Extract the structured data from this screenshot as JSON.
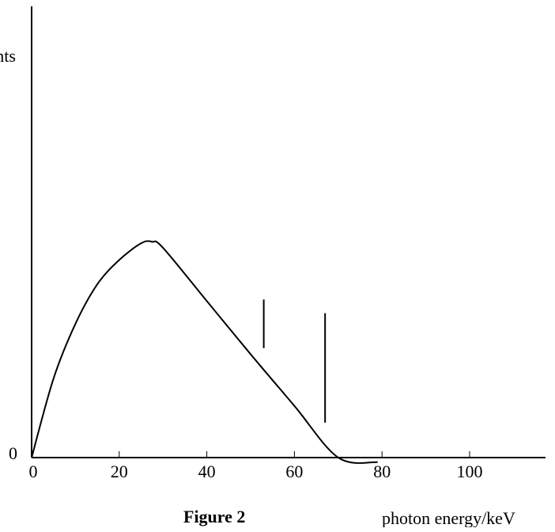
{
  "chart_data": {
    "type": "line",
    "title": "",
    "caption": "Figure 2",
    "xlabel": "photon energy/keV",
    "ylabel": "counts",
    "xlim": [
      0,
      120
    ],
    "ylim": [
      0,
      100
    ],
    "x_ticks": [
      0,
      20,
      40,
      60,
      80,
      100
    ],
    "y_ticks": [
      0
    ],
    "grid": false,
    "legend": "none",
    "series": [
      {
        "x": [
          0,
          5,
          10,
          15,
          20,
          25,
          27.5,
          30,
          40,
          50,
          60,
          70,
          79
        ],
        "y": [
          0,
          26,
          44,
          57,
          65,
          70.5,
          71,
          69,
          51.5,
          34,
          17,
          0,
          -1.5
        ]
      }
    ],
    "annotations": [
      {
        "type": "spike",
        "x": 53,
        "y_from": 36,
        "y_to": 52
      },
      {
        "type": "spike",
        "x": 67,
        "y_from": 11.5,
        "y_to": 47.5
      }
    ],
    "colors": {
      "line": "#000000",
      "axis": "#000000"
    }
  }
}
